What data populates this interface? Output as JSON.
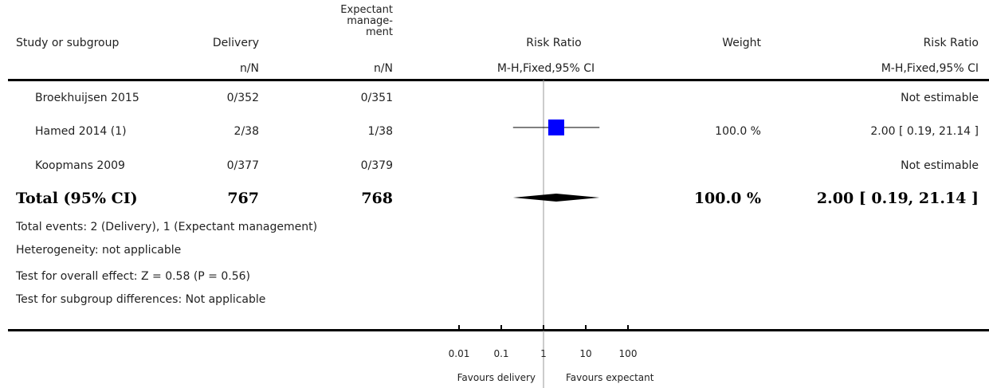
{
  "headers": {
    "study": "Study or subgroup",
    "delivery": "Delivery",
    "expectant_l1": "Expectant",
    "expectant_l2": "manage-",
    "expectant_l3": "ment",
    "rr_plot": "Risk Ratio",
    "weight": "Weight",
    "rr_text": "Risk Ratio",
    "nN_delivery": "n/N",
    "nN_expectant": "n/N",
    "method_plot": "M-H,Fixed,95% CI",
    "method_text": "M-H,Fixed,95% CI"
  },
  "studies": [
    {
      "name": "Broekhuijsen 2015",
      "delivery": "0/352",
      "expectant": "0/351",
      "weight": "",
      "effect_text": "Not estimable"
    },
    {
      "name": "Hamed 2014 (1)",
      "delivery": "2/38",
      "expectant": "1/38",
      "weight": "100.0 %",
      "effect_text": "2.00 [ 0.19, 21.14 ]"
    },
    {
      "name": "Koopmans 2009",
      "delivery": "0/377",
      "expectant": "0/379",
      "weight": "",
      "effect_text": "Not estimable"
    }
  ],
  "total": {
    "label": "Total (95% CI)",
    "delivery": "767",
    "expectant": "768",
    "weight": "100.0 %",
    "effect_text": "2.00 [ 0.19, 21.14 ]"
  },
  "notes": [
    "Total events: 2 (Delivery), 1 (Expectant management)",
    "Heterogeneity: not applicable",
    "Test for overall effect: Z = 0.58 (P = 0.56)",
    "Test for subgroup differences: Not applicable"
  ],
  "axis": {
    "ticks": [
      "0.01",
      "0.1",
      "1",
      "10",
      "100"
    ],
    "favours_left": "Favours delivery",
    "favours_right": "Favours expectant"
  },
  "colors": {
    "study_marker": "#0000ff",
    "total_diamond": "#000000",
    "axis": "#000000",
    "null_line": "#999999"
  },
  "chart_data": {
    "type": "forest",
    "scale": "log",
    "xlim": [
      0.01,
      100
    ],
    "null_value": 1,
    "tick_values": [
      0.01,
      0.1,
      1,
      10,
      100
    ],
    "studies": [
      {
        "name": "Broekhuijsen 2015",
        "estimate": null,
        "lower": null,
        "upper": null,
        "weight": null
      },
      {
        "name": "Hamed 2014 (1)",
        "estimate": 2.0,
        "lower": 0.19,
        "upper": 21.14,
        "weight": 100.0
      },
      {
        "name": "Koopmans 2009",
        "estimate": null,
        "lower": null,
        "upper": null,
        "weight": null
      }
    ],
    "pooled": {
      "name": "Total (95% CI)",
      "estimate": 2.0,
      "lower": 0.19,
      "upper": 21.14
    }
  }
}
